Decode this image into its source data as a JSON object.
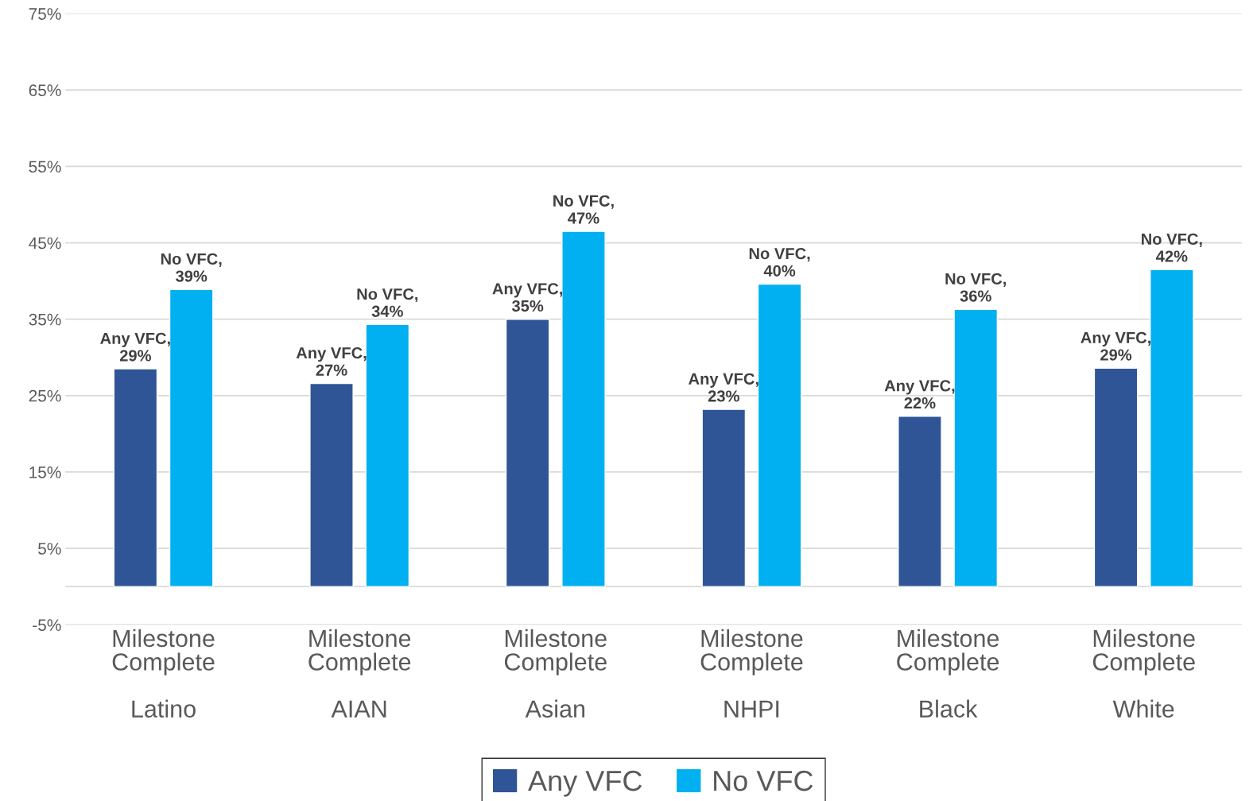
{
  "chart_data": {
    "type": "bar",
    "categories": [
      "Milestone\nComplete\n\nLatino",
      "Milestone\nComplete\n\nAIAN",
      "Milestone\nComplete\n\nAsian",
      "Milestone\nComplete\n\nNHPI",
      "Milestone\nComplete\n\nBlack",
      "Milestone\nComplete\n\nWhite"
    ],
    "series": [
      {
        "name": "Any VFC",
        "color": "#2f5597",
        "values": [
          28.5,
          26.6,
          35.0,
          23.2,
          22.3,
          28.6
        ],
        "value_labels": [
          "Any VFC,\n29%",
          "Any VFC,\n27%",
          "Any VFC,\n35%",
          "Any VFC,\n23%",
          "Any VFC,\n22%",
          "Any VFC,\n29%"
        ]
      },
      {
        "name": "No VFC",
        "color": "#00b0f0",
        "values": [
          38.9,
          34.3,
          46.5,
          39.6,
          36.3,
          41.5
        ],
        "value_labels": [
          "No VFC,\n39%",
          "No VFC,\n34%",
          "No VFC,\n47%",
          "No VFC,\n40%",
          "No VFC,\n36%",
          "No VFC,\n42%"
        ]
      }
    ],
    "ylim": [
      -5,
      75
    ],
    "yticks": [
      {
        "value": 75,
        "label": "75%"
      },
      {
        "value": 65,
        "label": "65%"
      },
      {
        "value": 55,
        "label": "55%"
      },
      {
        "value": 45,
        "label": "45%"
      },
      {
        "value": 35,
        "label": "35%"
      },
      {
        "value": 25,
        "label": "25%"
      },
      {
        "value": 15,
        "label": "15%"
      },
      {
        "value": 5,
        "label": "5%"
      },
      {
        "value": -5,
        "label": "-5%"
      }
    ],
    "grid": "y",
    "legend": "bottom"
  }
}
